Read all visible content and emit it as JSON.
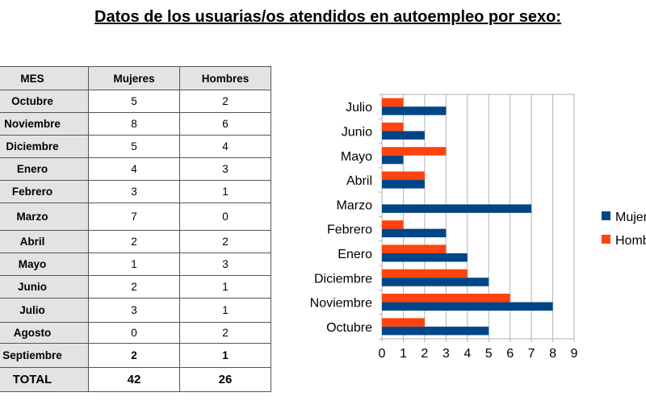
{
  "title": "Datos de los usuarias/os atendidos en autoempleo por sexo:",
  "table": {
    "headers": [
      "MES",
      "Mujeres",
      "Hombres"
    ],
    "rows": [
      {
        "month": "Octubre",
        "mujeres": "5",
        "hombres": "2"
      },
      {
        "month": "Noviembre",
        "mujeres": "8",
        "hombres": "6"
      },
      {
        "month": "Diciembre",
        "mujeres": "5",
        "hombres": "4"
      },
      {
        "month": "Enero",
        "mujeres": "4",
        "hombres": "3"
      },
      {
        "month": "Febrero",
        "mujeres": "3",
        "hombres": "1"
      },
      {
        "month": "Marzo",
        "mujeres": "7",
        "hombres": "0"
      },
      {
        "month": "Abril",
        "mujeres": "2",
        "hombres": "2"
      },
      {
        "month": "Mayo",
        "mujeres": "1",
        "hombres": "3"
      },
      {
        "month": "Junio",
        "mujeres": "2",
        "hombres": "1"
      },
      {
        "month": "Julio",
        "mujeres": "3",
        "hombres": "1"
      },
      {
        "month": "Agosto",
        "mujeres": "0",
        "hombres": "2"
      },
      {
        "month": "Septiembre",
        "mujeres": "2",
        "hombres": "1"
      }
    ],
    "total": {
      "label": "TOTAL",
      "mujeres": "42",
      "hombres": "26"
    }
  },
  "chart_data": {
    "type": "bar",
    "orientation": "horizontal",
    "categories": [
      "Octubre",
      "Noviembre",
      "Diciembre",
      "Enero",
      "Febrero",
      "Marzo",
      "Abril",
      "Mayo",
      "Junio",
      "Julio"
    ],
    "series": [
      {
        "name": "Mujeres",
        "color": "#004586",
        "values": [
          5,
          8,
          5,
          4,
          3,
          7,
          2,
          1,
          2,
          3
        ]
      },
      {
        "name": "Hombres",
        "color": "#ff420e",
        "values": [
          2,
          6,
          4,
          3,
          1,
          0,
          2,
          3,
          1,
          1
        ]
      }
    ],
    "xlim": [
      0,
      9
    ],
    "xticks": [
      "0",
      "1",
      "2",
      "3",
      "4",
      "5",
      "6",
      "7",
      "8",
      "9"
    ],
    "grid": true,
    "legend": "right"
  }
}
